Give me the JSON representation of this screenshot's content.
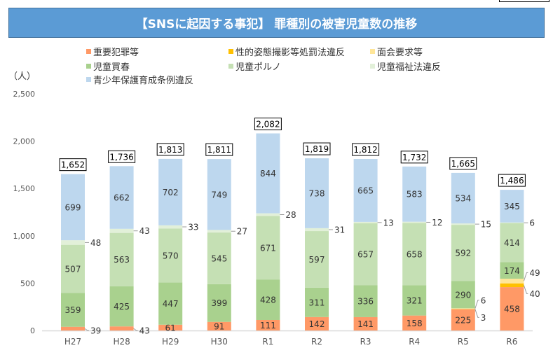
{
  "chart_data": {
    "type": "bar",
    "stacked": true,
    "title": "【SNSに起因する事犯】 罪種別の被害児童数の推移",
    "ylabel": "（人）",
    "ylim": [
      0,
      2500
    ],
    "yticks": [
      0,
      500,
      1000,
      1500,
      2000,
      2500
    ],
    "ytick_labels": [
      "0",
      "500",
      "1,000",
      "1,500",
      "2,000",
      "2,500"
    ],
    "categories": [
      "H27",
      "H28",
      "H29",
      "H30",
      "R1",
      "R2",
      "R3",
      "R4",
      "R5",
      "R6"
    ],
    "series": [
      {
        "name": "重要犯罪等",
        "color": "#FF9966",
        "values": [
          39,
          43,
          61,
          91,
          111,
          142,
          141,
          158,
          225,
          458
        ]
      },
      {
        "name": "性的姿態撮影等処罰法違反",
        "color": "#FFC000",
        "values": [
          0,
          0,
          0,
          0,
          0,
          0,
          0,
          0,
          3,
          40
        ]
      },
      {
        "name": "面会要求等",
        "color": "#FFE699",
        "values": [
          0,
          0,
          0,
          0,
          0,
          0,
          0,
          0,
          6,
          49
        ]
      },
      {
        "name": "児童買春",
        "color": "#A9D18E",
        "values": [
          359,
          425,
          447,
          399,
          428,
          311,
          336,
          321,
          290,
          174
        ]
      },
      {
        "name": "児童ポルノ",
        "color": "#C5E0B4",
        "values": [
          507,
          563,
          570,
          545,
          671,
          597,
          657,
          658,
          592,
          414
        ]
      },
      {
        "name": "児童福祉法違反",
        "color": "#E2F0D9",
        "values": [
          48,
          43,
          33,
          27,
          28,
          31,
          13,
          12,
          15,
          6
        ]
      },
      {
        "name": "青少年保護育成条例違反",
        "color": "#BDD7EE",
        "values": [
          699,
          662,
          702,
          749,
          844,
          738,
          665,
          583,
          534,
          345
        ]
      }
    ],
    "totals": [
      "1,652",
      "1,736",
      "1,813",
      "1,811",
      "2,082",
      "1,819",
      "1,812",
      "1,732",
      "1,665",
      "1,486"
    ]
  }
}
